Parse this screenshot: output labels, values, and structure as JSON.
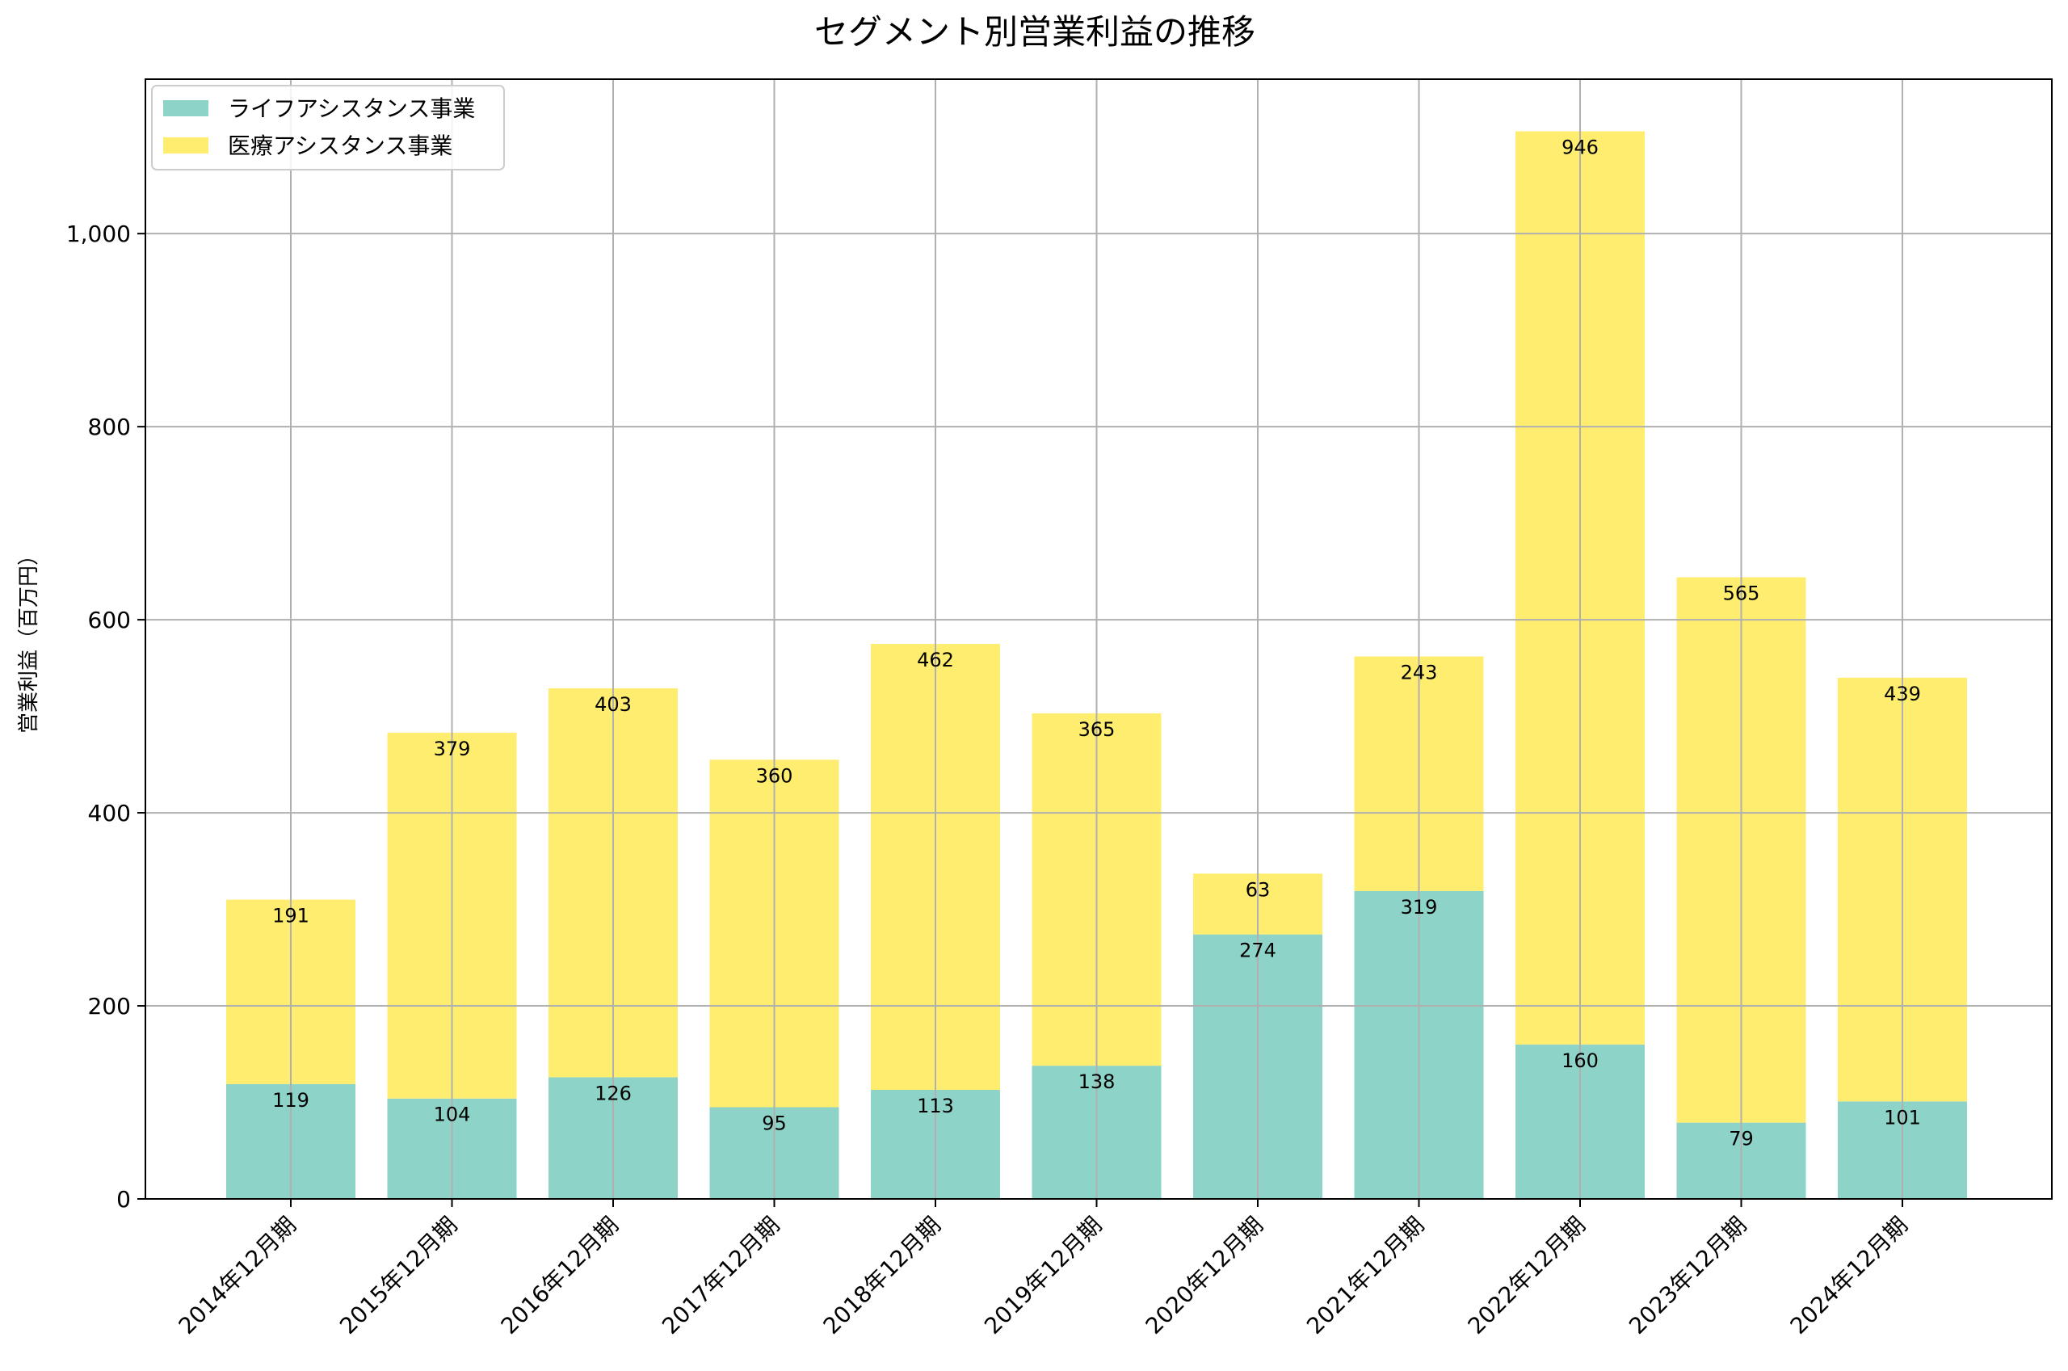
{
  "chart_data": {
    "type": "bar",
    "stacked": true,
    "title": "セグメント別営業利益の推移",
    "xlabel": "",
    "ylabel": "営業利益（百万円）",
    "ylim": [
      0,
      1160
    ],
    "yticks": [
      0,
      200,
      400,
      600,
      800,
      1000
    ],
    "ytick_labels": [
      "0",
      "200",
      "400",
      "600",
      "800",
      "1,000"
    ],
    "grid": true,
    "legend_position": "top-left",
    "categories": [
      "2014年12月期",
      "2015年12月期",
      "2016年12月期",
      "2017年12月期",
      "2018年12月期",
      "2019年12月期",
      "2020年12月期",
      "2021年12月期",
      "2022年12月期",
      "2023年12月期",
      "2024年12月期"
    ],
    "series": [
      {
        "name": "ライフアシスタンス事業",
        "color": "#8dd3c7",
        "values": [
          119,
          104,
          126,
          95,
          113,
          138,
          274,
          319,
          160,
          79,
          101
        ],
        "labels": [
          "119",
          "104",
          "126",
          "95",
          "113",
          "138",
          "274",
          "319",
          "160",
          "79",
          "101"
        ]
      },
      {
        "name": "医療アシスタンス事業",
        "color": "#ffed6f",
        "values": [
          191,
          379,
          403,
          360,
          462,
          365,
          63,
          243,
          946,
          565,
          439
        ],
        "labels": [
          "191",
          "379",
          "403",
          "360",
          "462",
          "365",
          "63",
          "243",
          "946",
          "565",
          "439"
        ]
      }
    ]
  }
}
